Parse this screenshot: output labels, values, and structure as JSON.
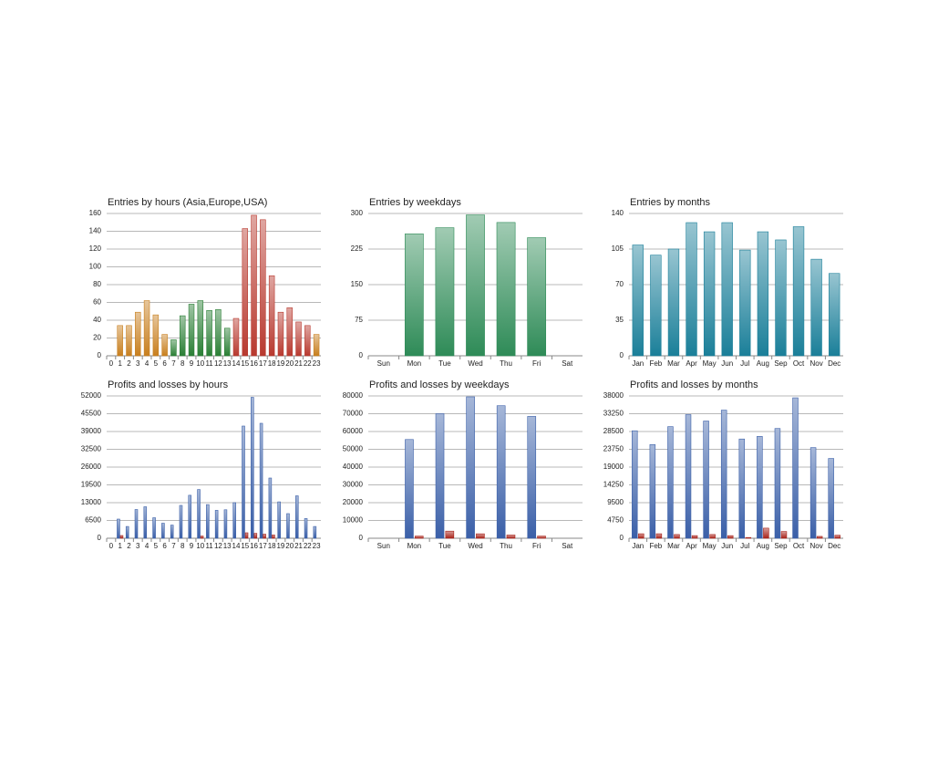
{
  "chart_data": [
    {
      "type": "bar",
      "title": "Entries by hours (Asia,Europe,USA)",
      "categories": [
        "0",
        "1",
        "2",
        "3",
        "4",
        "5",
        "6",
        "7",
        "8",
        "9",
        "10",
        "11",
        "12",
        "13",
        "14",
        "15",
        "16",
        "17",
        "18",
        "19",
        "20",
        "21",
        "22",
        "23"
      ],
      "values": [
        0,
        34,
        34,
        49,
        62,
        46,
        24,
        18,
        45,
        58,
        62,
        51,
        52,
        31,
        42,
        143,
        158,
        153,
        90,
        49,
        54,
        38,
        34,
        24
      ],
      "colors": [
        "#c87f1e",
        "#c87f1e",
        "#c87f1e",
        "#c87f1e",
        "#c87f1e",
        "#c87f1e",
        "#c87f1e",
        "#2a7f35",
        "#2a7f35",
        "#2a7f35",
        "#2a7f35",
        "#2a7f35",
        "#2a7f35",
        "#2a7f35",
        "#b8392f",
        "#b8392f",
        "#b8392f",
        "#b8392f",
        "#b8392f",
        "#b8392f",
        "#b8392f",
        "#b8392f",
        "#b8392f",
        "#c87f1e"
      ],
      "ylim": [
        0,
        160
      ],
      "yticks": [
        0,
        20,
        40,
        60,
        80,
        100,
        120,
        140,
        160
      ],
      "grid": true
    },
    {
      "type": "bar",
      "title": "Entries by weekdays",
      "categories": [
        "Sun",
        "Mon",
        "Tue",
        "Wed",
        "Thu",
        "Fri",
        "Sat"
      ],
      "values": [
        0,
        257,
        270,
        297,
        281,
        249,
        0
      ],
      "color": "#2e8b57",
      "ylim": [
        0,
        300
      ],
      "yticks": [
        0,
        75,
        150,
        225,
        300
      ],
      "grid": true
    },
    {
      "type": "bar",
      "title": "Entries by months",
      "categories": [
        "Jan",
        "Feb",
        "Mar",
        "Apr",
        "May",
        "Jun",
        "Jul",
        "Aug",
        "Sep",
        "Oct",
        "Nov",
        "Dec"
      ],
      "values": [
        109,
        99,
        105,
        131,
        122,
        131,
        104,
        122,
        114,
        127,
        95,
        81
      ],
      "color": "#1a7f99",
      "ylim": [
        0,
        140
      ],
      "yticks": [
        0,
        35,
        70,
        105,
        140
      ],
      "grid": true
    },
    {
      "type": "grouped-bar",
      "title": "Profits and losses by hours",
      "categories": [
        "0",
        "1",
        "2",
        "3",
        "4",
        "5",
        "6",
        "7",
        "8",
        "9",
        "10",
        "11",
        "12",
        "13",
        "14",
        "15",
        "16",
        "17",
        "18",
        "19",
        "20",
        "21",
        "22",
        "23"
      ],
      "series": [
        {
          "color": "#3a5fa8",
          "values": [
            0,
            7000,
            4300,
            10500,
            11500,
            7500,
            5500,
            4800,
            12000,
            15700,
            17800,
            12300,
            10200,
            10400,
            13000,
            41000,
            51500,
            42000,
            22000,
            13300,
            9000,
            15500,
            7200,
            4300
          ]
        },
        {
          "color": "#a8231a",
          "values": [
            0,
            1000,
            0,
            0,
            0,
            0,
            0,
            0,
            0,
            0,
            800,
            0,
            0,
            0,
            0,
            2000,
            1800,
            1500,
            1200,
            0,
            0,
            0,
            0,
            0
          ]
        }
      ],
      "ylim": [
        0,
        52000
      ],
      "yticks": [
        0,
        6500,
        13000,
        19500,
        26000,
        32500,
        39000,
        45500,
        52000
      ],
      "grid": true
    },
    {
      "type": "grouped-bar",
      "title": "Profits and losses by weekdays",
      "categories": [
        "Sun",
        "Mon",
        "Tue",
        "Wed",
        "Thu",
        "Fri",
        "Sat"
      ],
      "series": [
        {
          "color": "#3a5fa8",
          "values": [
            0,
            55500,
            70000,
            79500,
            74500,
            68500,
            0
          ]
        },
        {
          "color": "#a8231a",
          "values": [
            0,
            1200,
            4000,
            2500,
            1800,
            1200,
            0
          ]
        }
      ],
      "ylim": [
        0,
        80000
      ],
      "yticks": [
        0,
        10000,
        20000,
        30000,
        40000,
        50000,
        60000,
        70000,
        80000
      ],
      "grid": true
    },
    {
      "type": "grouped-bar",
      "title": "Profits and losses by months",
      "categories": [
        "Jan",
        "Feb",
        "Mar",
        "Apr",
        "May",
        "Jun",
        "Jul",
        "Aug",
        "Sep",
        "Oct",
        "Nov",
        "Dec"
      ],
      "series": [
        {
          "color": "#3a5fa8",
          "values": [
            28700,
            25000,
            29800,
            33000,
            31300,
            34200,
            26500,
            27200,
            29300,
            37500,
            24200,
            21300
          ]
        },
        {
          "color": "#a8231a",
          "values": [
            1200,
            1200,
            1000,
            700,
            1000,
            700,
            200,
            2700,
            1800,
            0,
            500,
            800
          ]
        }
      ],
      "ylim": [
        0,
        38000
      ],
      "yticks": [
        0,
        4750,
        9500,
        14250,
        19000,
        23750,
        28500,
        33250,
        38000
      ],
      "grid": true
    }
  ]
}
